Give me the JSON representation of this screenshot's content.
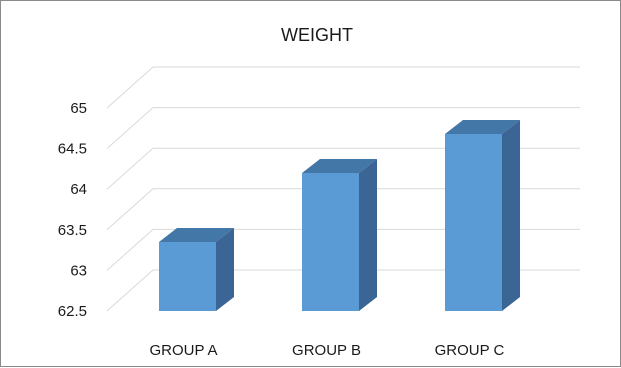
{
  "chart_data": {
    "type": "bar",
    "style": "3d-column",
    "title": "WEIGHT",
    "xlabel": "",
    "ylabel": "",
    "categories": [
      "GROUP A",
      "GROUP B",
      "GROUP C"
    ],
    "series": [
      {
        "values": [
          63.35,
          64.2,
          64.68
        ]
      }
    ],
    "ylim": [
      62.5,
      65
    ],
    "yticks": [
      "62.5",
      "63",
      "63.5",
      "64",
      "64.5",
      "65"
    ],
    "grid": true,
    "legend": "none",
    "colors": {
      "front": "#5b9bd5",
      "top": "#4277a8",
      "side": "#3a6594"
    }
  }
}
